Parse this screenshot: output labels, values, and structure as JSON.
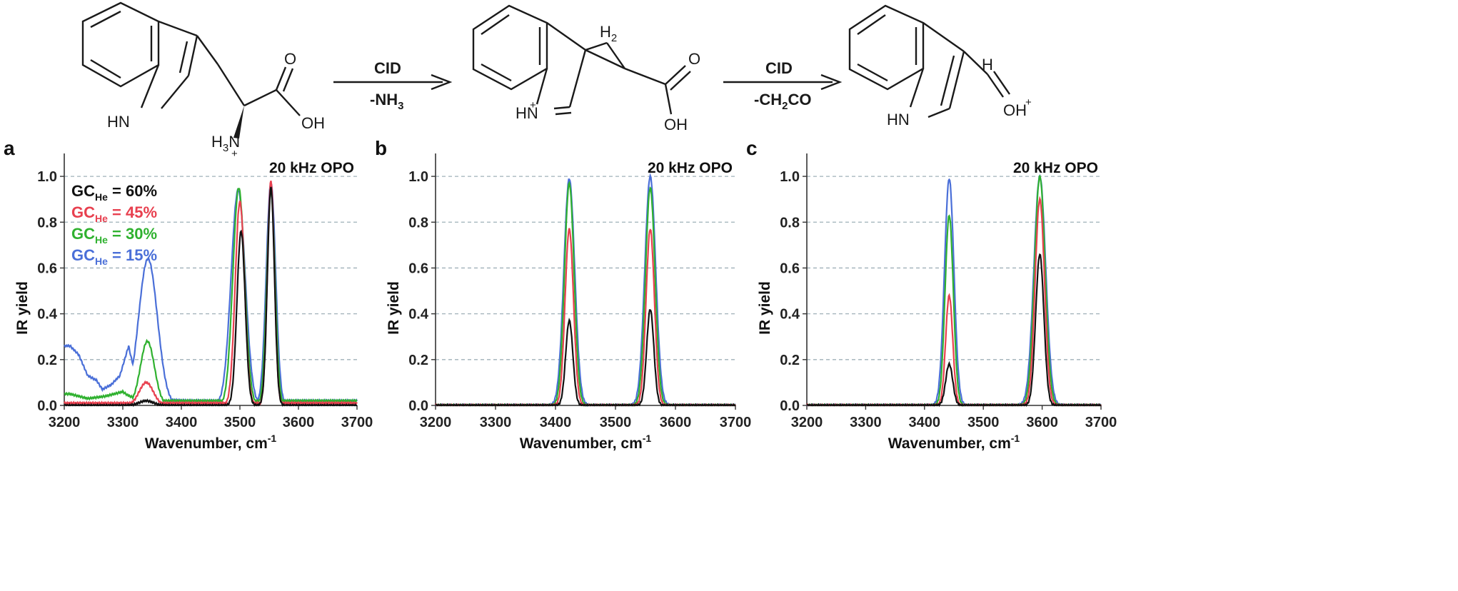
{
  "scheme": {
    "reactant": {
      "nh": "HN",
      "amine": "H",
      "amine_sub": "3",
      "amine_n": "N",
      "charge": "+",
      "carbonyl_o": "O",
      "oh": "OH"
    },
    "arrow1": {
      "top": "CID",
      "bottom_pre": "-NH",
      "bottom_sub": "3"
    },
    "intermediate": {
      "hn": "HN",
      "charge": "+",
      "h2": "H",
      "h2_sub": "2",
      "carbonyl_o": "O",
      "oh": "OH"
    },
    "arrow2": {
      "top": "CID",
      "bottom_pre": "-CH",
      "bottom_sub": "2",
      "bottom_post": "CO"
    },
    "product": {
      "nh": "HN",
      "h": "H",
      "oh": "OH",
      "charge": "+"
    }
  },
  "colors": {
    "black": "#111111",
    "red": "#e8404f",
    "green": "#2fb12f",
    "blue": "#4a6fd8",
    "grid": "#9fb0b8"
  },
  "legend": [
    {
      "prefix": "GC",
      "sub": "He",
      "suffix": " = 60%",
      "color": "#111111"
    },
    {
      "prefix": "GC",
      "sub": "He",
      "suffix": " = 45%",
      "color": "#e8404f"
    },
    {
      "prefix": "GC",
      "sub": "He",
      "suffix": " = 30%",
      "color": "#2fb12f"
    },
    {
      "prefix": "GC",
      "sub": "He",
      "suffix": " = 15%",
      "color": "#4a6fd8"
    }
  ],
  "chart_data": [
    {
      "panel": "a",
      "type": "line",
      "annotation": "20 kHz OPO",
      "xlabel": "Wavenumber, cm",
      "xlabel_sup": "-1",
      "ylabel": "IR yield",
      "xlim": [
        3200,
        3700
      ],
      "ylim": [
        0,
        1.1
      ],
      "xticks": [
        "3200",
        "3300",
        "3400",
        "3500",
        "3600",
        "3700"
      ],
      "yticks": [
        "0.0",
        "0.2",
        "0.4",
        "0.6",
        "0.8",
        "1.0"
      ],
      "grid": "horizontal dashed at 0.2 steps",
      "series": [
        {
          "name": "GC He = 60%",
          "color": "#111111",
          "baseline": 0.0,
          "peaks": [
            [
              3340,
              0.02,
              12
            ],
            [
              3502,
              0.76,
              7
            ],
            [
              3553,
              0.95,
              6
            ]
          ]
        },
        {
          "name": "GC He = 45%",
          "color": "#e8404f",
          "baseline": 0.01,
          "peaks": [
            [
              3340,
              0.1,
              12
            ],
            [
              3500,
              0.89,
              8
            ],
            [
              3553,
              0.98,
              6
            ]
          ]
        },
        {
          "name": "GC He = 30%",
          "color": "#2fb12f",
          "baseline": 0.02,
          "points_low": [
            [
              3210,
              0.05
            ],
            [
              3240,
              0.03
            ],
            [
              3270,
              0.04
            ],
            [
              3300,
              0.06
            ]
          ],
          "peaks": [
            [
              3342,
              0.28,
              12
            ],
            [
              3498,
              0.95,
              10
            ],
            [
              3553,
              0.94,
              7
            ]
          ]
        },
        {
          "name": "GC He = 15%",
          "color": "#4a6fd8",
          "baseline": 0.02,
          "points_low": [
            [
              3210,
              0.26
            ],
            [
              3225,
              0.22
            ],
            [
              3240,
              0.13
            ],
            [
              3255,
              0.11
            ],
            [
              3265,
              0.07
            ],
            [
              3280,
              0.09
            ],
            [
              3295,
              0.13
            ],
            [
              3310,
              0.26
            ]
          ],
          "peaks": [
            [
              3343,
              0.64,
              16
            ],
            [
              3497,
              0.94,
              12
            ],
            [
              3553,
              0.97,
              8
            ]
          ]
        }
      ]
    },
    {
      "panel": "b",
      "type": "line",
      "annotation": "20 kHz OPO",
      "xlabel": "Wavenumber, cm",
      "xlabel_sup": "-1",
      "ylabel": "IR yield",
      "xlim": [
        3200,
        3700
      ],
      "ylim": [
        0,
        1.1
      ],
      "xticks": [
        "3200",
        "3300",
        "3400",
        "3500",
        "3600",
        "3700"
      ],
      "yticks": [
        "0.0",
        "0.2",
        "0.4",
        "0.6",
        "0.8",
        "1.0"
      ],
      "grid": "horizontal dashed at 0.2 steps",
      "series": [
        {
          "name": "GC He = 60%",
          "color": "#111111",
          "baseline": 0.0,
          "peaks": [
            [
              3423,
              0.37,
              6
            ],
            [
              3558,
              0.42,
              6
            ]
          ]
        },
        {
          "name": "GC He = 45%",
          "color": "#e8404f",
          "baseline": 0.0,
          "peaks": [
            [
              3423,
              0.77,
              7
            ],
            [
              3558,
              0.77,
              7
            ]
          ]
        },
        {
          "name": "GC He = 30%",
          "color": "#2fb12f",
          "baseline": 0.0,
          "peaks": [
            [
              3423,
              0.97,
              8
            ],
            [
              3558,
              0.95,
              8
            ]
          ]
        },
        {
          "name": "GC He = 15%",
          "color": "#4a6fd8",
          "baseline": 0.0,
          "peaks": [
            [
              3423,
              0.99,
              9
            ],
            [
              3558,
              1.0,
              9
            ]
          ]
        }
      ]
    },
    {
      "panel": "c",
      "type": "line",
      "annotation": "20 kHz OPO",
      "xlabel": "Wavenumber, cm",
      "xlabel_sup": "-1",
      "ylabel": "IR yield",
      "xlim": [
        3200,
        3700
      ],
      "ylim": [
        0,
        1.1
      ],
      "xticks": [
        "3200",
        "3300",
        "3400",
        "3500",
        "3600",
        "3700"
      ],
      "yticks": [
        "0.0",
        "0.2",
        "0.4",
        "0.6",
        "0.8",
        "1.0"
      ],
      "grid": "horizontal dashed at 0.2 steps",
      "series": [
        {
          "name": "GC He = 60%",
          "color": "#111111",
          "baseline": 0.0,
          "peaks": [
            [
              3442,
              0.18,
              6
            ],
            [
              3596,
              0.66,
              7
            ]
          ]
        },
        {
          "name": "GC He = 45%",
          "color": "#e8404f",
          "baseline": 0.0,
          "peaks": [
            [
              3442,
              0.48,
              6
            ],
            [
              3596,
              0.9,
              8
            ]
          ]
        },
        {
          "name": "GC He = 30%",
          "color": "#2fb12f",
          "baseline": 0.0,
          "peaks": [
            [
              3442,
              0.83,
              7
            ],
            [
              3596,
              1.0,
              9
            ]
          ]
        },
        {
          "name": "GC He = 15%",
          "color": "#4a6fd8",
          "baseline": 0.0,
          "peaks": [
            [
              3442,
              0.99,
              8
            ],
            [
              3596,
              1.0,
              10
            ]
          ]
        }
      ]
    }
  ]
}
